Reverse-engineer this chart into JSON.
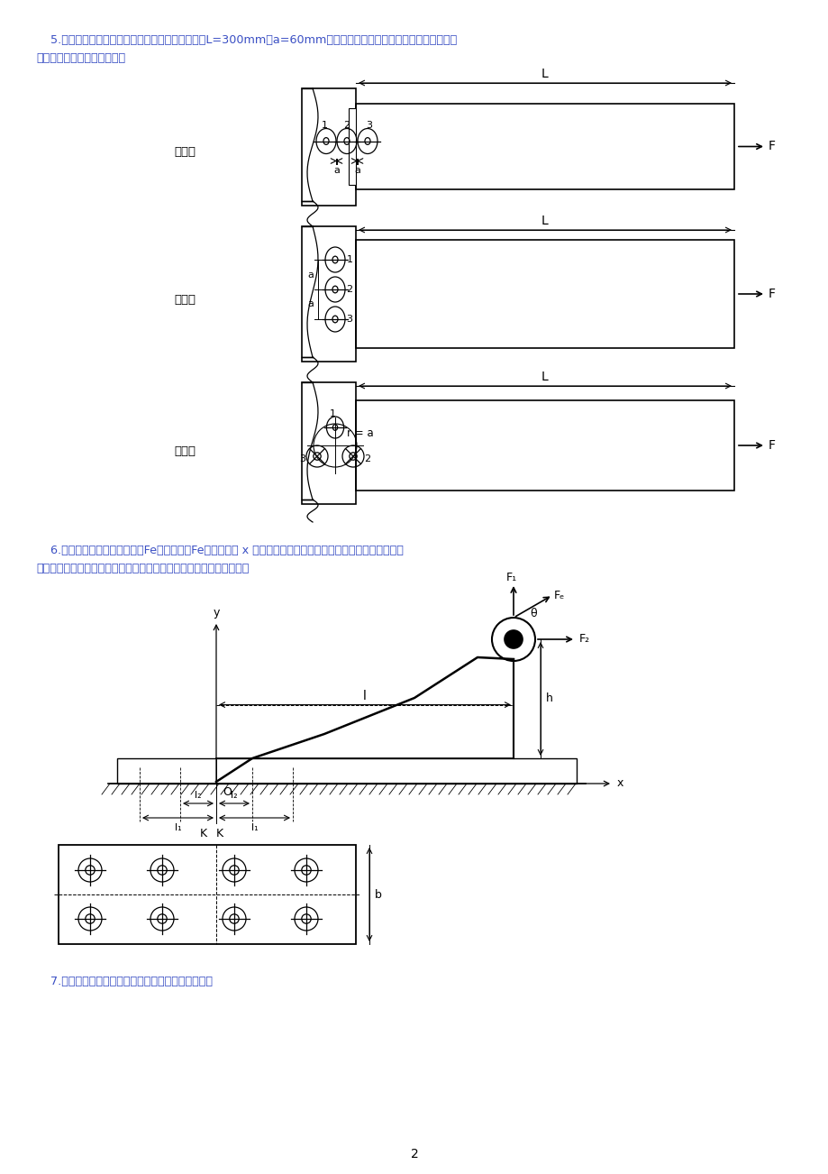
{
  "page_width": 9.2,
  "page_height": 13.02,
  "bg_color": "#ffffff",
  "text_color": "#3a4fc4",
  "drawing_color": "#000000",
  "q5_text_line1": "    5.铰制孔用螺栓组联接的三种方案如图所示，已知L=300mm，a=60mm，试求三个方案中，受力最大的螺栓所受的",
  "q5_text_line2": "力各为多少？哪个方案较好？",
  "q6_text_line1": "    6.图示底板螺栓组联接受外力Fe作用，外力Fe作用在包含 x 轴并垂直于底板结合面的平面内。试分析螺栓组受",
  "q6_text_line2": "力情况，并判断哪个螺栓受载最大？保证联接安全的必要条件有哪些？",
  "q7_text": "    7.指出下列图中的错误结构，并画出正确的结构图。",
  "page_num": "2"
}
